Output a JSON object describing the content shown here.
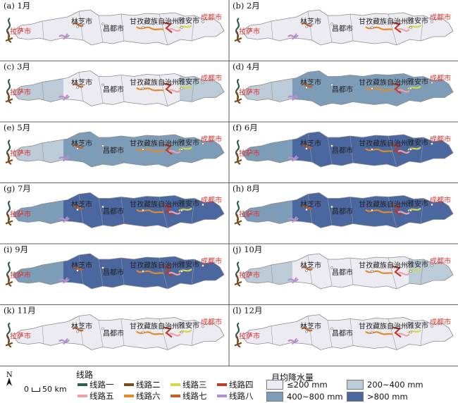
{
  "panels": [
    {
      "label": "(a) 1月",
      "level": "low"
    },
    {
      "label": "(b) 2月",
      "level": "low"
    },
    {
      "label": "(c) 3月",
      "level": "low-mid"
    },
    {
      "label": "(d) 4月",
      "level": "mid"
    },
    {
      "label": "(e) 5月",
      "level": "mid"
    },
    {
      "label": "(f) 6月",
      "level": "high"
    },
    {
      "label": "(g) 7月",
      "level": "high"
    },
    {
      "label": "(h) 8月",
      "level": "high"
    },
    {
      "label": "(i) 9月",
      "level": "high"
    },
    {
      "label": "(j) 10月",
      "level": "low-mid"
    },
    {
      "label": "(k) 11月",
      "level": "low"
    },
    {
      "label": "(l) 12月",
      "level": "low"
    }
  ],
  "cities": {
    "lhasa": "拉萨市",
    "nyingchi": "林芝市",
    "qamdo": "昌都市",
    "garze": "甘孜藏族自治州",
    "yaan": "雅安市",
    "chengdu": "成都市"
  },
  "legend": {
    "routes_title": "线路",
    "routes": [
      {
        "name": "线路一",
        "color": "#2f5d4e"
      },
      {
        "name": "线路二",
        "color": "#7a4a1e"
      },
      {
        "name": "线路三",
        "color": "#d6d64a"
      },
      {
        "name": "线路四",
        "color": "#c0392b"
      },
      {
        "name": "线路五",
        "color": "#f2a0a8"
      },
      {
        "name": "线路六",
        "color": "#e08a2a"
      },
      {
        "name": "线路七",
        "color": "#c0602a"
      },
      {
        "name": "线路八",
        "color": "#b48fcc"
      }
    ],
    "precip_title": "月均降水量",
    "precip": [
      {
        "label": "≤200 mm",
        "color": "#ecebf2"
      },
      {
        "label": "200~400 mm",
        "color": "#bccbd8"
      },
      {
        "label": "400~800 mm",
        "color": "#7d9cb8"
      },
      {
        "label": ">800 mm",
        "color": "#4a67a0"
      }
    ],
    "north": "N",
    "scale": "50 km",
    "scale_zero": "0"
  },
  "colors": {
    "city_label": "#222222",
    "city_label_red": "#e03030"
  }
}
